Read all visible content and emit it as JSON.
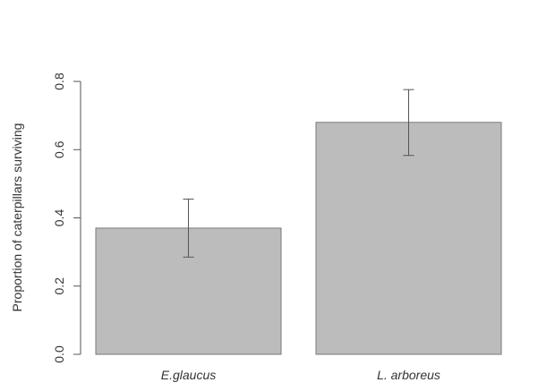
{
  "chart_data": {
    "type": "bar",
    "categories": [
      "E.glaucus",
      "L. arboreus"
    ],
    "values": [
      0.37,
      0.68
    ],
    "error_low": [
      0.285,
      0.583
    ],
    "error_high": [
      0.455,
      0.776
    ],
    "title": "",
    "xlabel": "",
    "ylabel": "Proportion of caterpillars surviving",
    "ylim": [
      0,
      0.8
    ],
    "yticks": [
      "0.0",
      "0.2",
      "0.4",
      "0.6",
      "0.8"
    ],
    "grid": false,
    "bar_color": "#bcbcbc",
    "bar_edge_color": "#7a7a7a",
    "axis_color": "#555555"
  }
}
